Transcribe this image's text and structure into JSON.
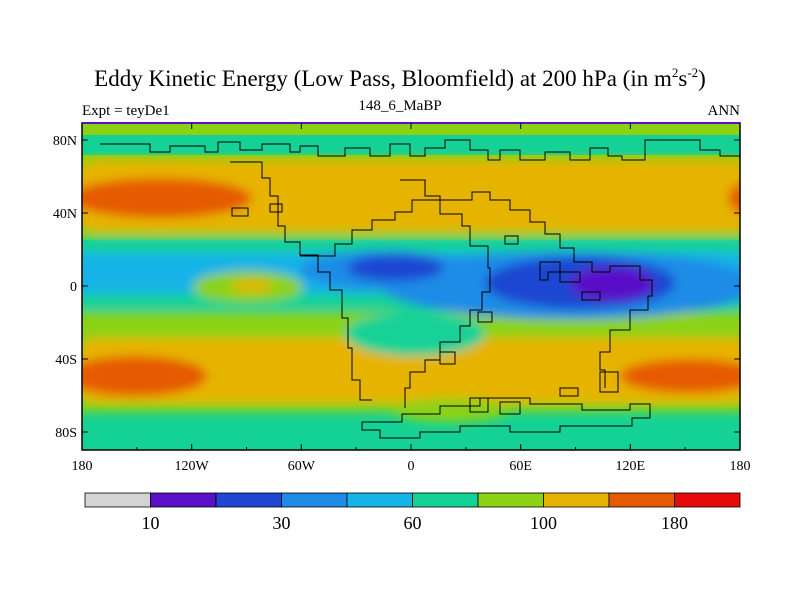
{
  "title": {
    "main": "Eddy Kinetic Energy (Low Pass, Bloomfield) at 200 hPa (in m",
    "sup1": "2",
    "mid": "s",
    "sup2": "-2",
    "close": ")"
  },
  "subtitle": {
    "left": "Expt = teyDe1",
    "center": "148_6_MaBP",
    "right": "ANN"
  },
  "map": {
    "x_ticks": [
      "180",
      "120W",
      "60W",
      "0",
      "60E",
      "120E",
      "180"
    ],
    "y_ticks": [
      "80N",
      "40N",
      "0",
      "40S",
      "80S"
    ],
    "x_range": [
      -180,
      180
    ],
    "y_range": [
      -90,
      90
    ]
  },
  "colorbar": {
    "colors": [
      "#d4d4d4",
      "#5a0fc8",
      "#1e46d2",
      "#1e8ce6",
      "#14b4e6",
      "#14d296",
      "#8cd214",
      "#e6b400",
      "#e65a00",
      "#e60a0a"
    ],
    "labels": [
      "10",
      "30",
      "60",
      "100",
      "180"
    ]
  }
}
